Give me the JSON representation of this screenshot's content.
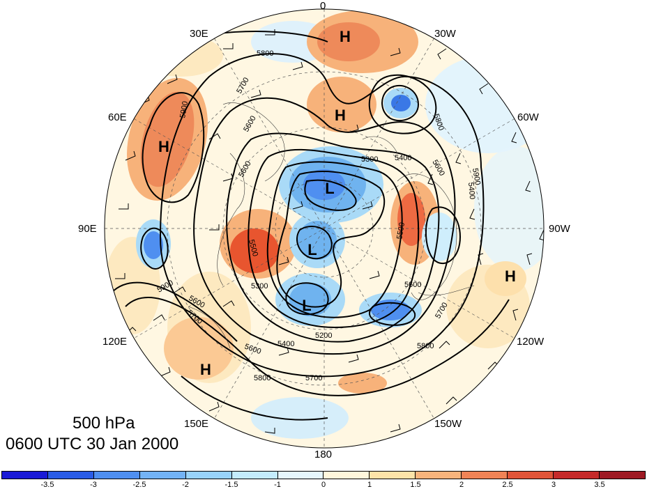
{
  "title": {
    "level": "500 hPa",
    "datetime": "0600 UTC 30 Jan 2000"
  },
  "map": {
    "projection": "north polar stereographic",
    "longitude_labels": [
      "0",
      "30W",
      "60W",
      "90W",
      "120W",
      "150W",
      "180",
      "150E",
      "120E",
      "90E",
      "60E",
      "30E"
    ],
    "contour_labels": [
      "5800",
      "5700",
      "5900",
      "5600",
      "5300",
      "5400",
      "5600",
      "5800",
      "5900",
      "5500",
      "5600",
      "5300",
      "5400",
      "5200",
      "5700",
      "5800",
      "5600",
      "5700",
      "5500",
      "5800",
      "5900",
      "5600",
      "5400",
      "5700",
      "5600"
    ],
    "pressure_centers": [
      {
        "label": "H"
      },
      {
        "label": "H"
      },
      {
        "label": "H"
      },
      {
        "label": "H"
      },
      {
        "label": "H"
      },
      {
        "label": "L"
      },
      {
        "label": "L"
      },
      {
        "label": "L"
      }
    ]
  },
  "colorbar": {
    "tick_labels": [
      "-3.5",
      "-3",
      "-2.5",
      "-2",
      "-1.5",
      "-1",
      "0",
      "1",
      "1.5",
      "2",
      "2.5",
      "3",
      "3.5"
    ],
    "colors": [
      "#1a1ad6",
      "#2a5ce6",
      "#4f8ff0",
      "#73b3f5",
      "#99d3fa",
      "#c4ecfc",
      "#e6f7fd",
      "#fff7dc",
      "#fde3a8",
      "#f8b47c",
      "#f08356",
      "#e05438",
      "#c52a2a",
      "#9e1a24"
    ]
  }
}
